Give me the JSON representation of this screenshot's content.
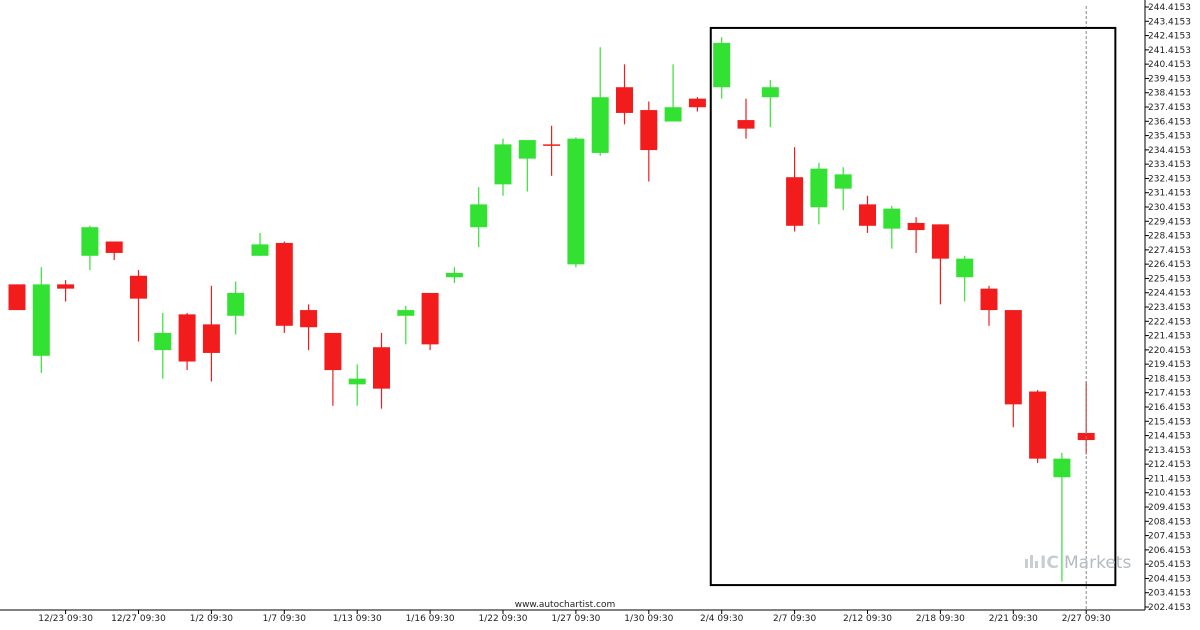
{
  "chart_data": {
    "type": "candlestick",
    "ylim": [
      202.4153,
      244.4153
    ],
    "y_ticks": [
      "244.4153",
      "243.4153",
      "242.4153",
      "241.4153",
      "240.4153",
      "239.4153",
      "238.4153",
      "237.4153",
      "236.4153",
      "235.4153",
      "234.4153",
      "233.4153",
      "232.4153",
      "231.4153",
      "230.4153",
      "229.4153",
      "228.4153",
      "227.4153",
      "226.4153",
      "225.4153",
      "224.4153",
      "223.4153",
      "222.4153",
      "221.4153",
      "220.4153",
      "219.4153",
      "218.4153",
      "217.4153",
      "216.4153",
      "215.4153",
      "214.4153",
      "213.4153",
      "212.4153",
      "211.4153",
      "210.4153",
      "209.4153",
      "208.4153",
      "207.4153",
      "206.4153",
      "205.4153",
      "204.4153",
      "203.4153",
      "202.4153"
    ],
    "x_ticks": [
      {
        "index": 2,
        "label": "12/23 09:30"
      },
      {
        "index": 5,
        "label": "12/27 09:30"
      },
      {
        "index": 8,
        "label": "1/2 09:30"
      },
      {
        "index": 11,
        "label": "1/7 09:30"
      },
      {
        "index": 14,
        "label": "1/13 09:30"
      },
      {
        "index": 17,
        "label": "1/16 09:30"
      },
      {
        "index": 20,
        "label": "1/22 09:30"
      },
      {
        "index": 23,
        "label": "1/27 09:30"
      },
      {
        "index": 26,
        "label": "1/30 09:30"
      },
      {
        "index": 29,
        "label": "2/4 09:30"
      },
      {
        "index": 32,
        "label": "2/7 09:30"
      },
      {
        "index": 35,
        "label": "2/12 09:30"
      },
      {
        "index": 38,
        "label": "2/18 09:30"
      },
      {
        "index": 41,
        "label": "2/21 09:30"
      },
      {
        "index": 44,
        "label": "2/27 09:30"
      }
    ],
    "candles": [
      {
        "o": 225.0,
        "h": 225.0,
        "l": 223.2,
        "c": 223.2
      },
      {
        "o": 220.0,
        "h": 226.2,
        "l": 218.8,
        "c": 225.0
      },
      {
        "o": 225.0,
        "h": 225.3,
        "l": 223.8,
        "c": 224.7
      },
      {
        "o": 227.0,
        "h": 229.1,
        "l": 226.0,
        "c": 229.0
      },
      {
        "o": 228.0,
        "h": 228.0,
        "l": 226.7,
        "c": 227.2
      },
      {
        "o": 225.6,
        "h": 226.0,
        "l": 221.0,
        "c": 224.0
      },
      {
        "o": 220.4,
        "h": 223.0,
        "l": 218.4,
        "c": 221.6
      },
      {
        "o": 222.9,
        "h": 223.0,
        "l": 219.0,
        "c": 219.6
      },
      {
        "o": 222.2,
        "h": 224.9,
        "l": 218.2,
        "c": 220.2
      },
      {
        "o": 222.8,
        "h": 225.2,
        "l": 221.5,
        "c": 224.4
      },
      {
        "o": 227.0,
        "h": 228.6,
        "l": 227.0,
        "c": 227.8
      },
      {
        "o": 227.9,
        "h": 228.0,
        "l": 221.6,
        "c": 222.1
      },
      {
        "o": 223.2,
        "h": 223.6,
        "l": 220.4,
        "c": 222.0
      },
      {
        "o": 221.6,
        "h": 221.6,
        "l": 216.5,
        "c": 219.0
      },
      {
        "o": 218.0,
        "h": 219.4,
        "l": 216.5,
        "c": 218.4
      },
      {
        "o": 220.6,
        "h": 221.6,
        "l": 216.3,
        "c": 217.7
      },
      {
        "o": 222.8,
        "h": 223.5,
        "l": 220.8,
        "c": 223.2
      },
      {
        "o": 224.4,
        "h": 224.4,
        "l": 220.4,
        "c": 220.8
      },
      {
        "o": 225.5,
        "h": 226.2,
        "l": 225.1,
        "c": 225.8
      },
      {
        "o": 229.0,
        "h": 231.8,
        "l": 227.6,
        "c": 230.6
      },
      {
        "o": 232.0,
        "h": 235.2,
        "l": 231.2,
        "c": 234.8
      },
      {
        "o": 233.8,
        "h": 235.1,
        "l": 231.5,
        "c": 235.1
      },
      {
        "o": 234.8,
        "h": 236.1,
        "l": 232.6,
        "c": 234.7
      },
      {
        "o": 226.4,
        "h": 235.3,
        "l": 226.2,
        "c": 235.2
      },
      {
        "o": 234.2,
        "h": 241.6,
        "l": 234.0,
        "c": 238.1
      },
      {
        "o": 238.8,
        "h": 240.4,
        "l": 236.2,
        "c": 237.0
      },
      {
        "o": 237.2,
        "h": 237.8,
        "l": 232.2,
        "c": 234.4
      },
      {
        "o": 236.4,
        "h": 240.4,
        "l": 236.4,
        "c": 237.4
      },
      {
        "o": 238.0,
        "h": 238.1,
        "l": 237.1,
        "c": 237.4
      },
      {
        "o": 238.8,
        "h": 242.3,
        "l": 238.0,
        "c": 241.9
      },
      {
        "o": 236.5,
        "h": 238.0,
        "l": 235.2,
        "c": 235.9
      },
      {
        "o": 238.1,
        "h": 239.3,
        "l": 236.0,
        "c": 238.8
      },
      {
        "o": 232.5,
        "h": 234.6,
        "l": 228.7,
        "c": 229.1
      },
      {
        "o": 230.4,
        "h": 233.5,
        "l": 229.2,
        "c": 233.1
      },
      {
        "o": 231.7,
        "h": 233.2,
        "l": 230.2,
        "c": 232.7
      },
      {
        "o": 230.6,
        "h": 231.2,
        "l": 228.6,
        "c": 229.1
      },
      {
        "o": 228.9,
        "h": 230.5,
        "l": 227.5,
        "c": 230.3
      },
      {
        "o": 229.3,
        "h": 229.7,
        "l": 227.2,
        "c": 228.8
      },
      {
        "o": 229.2,
        "h": 229.2,
        "l": 223.6,
        "c": 226.8
      },
      {
        "o": 225.5,
        "h": 227.0,
        "l": 223.8,
        "c": 226.8
      },
      {
        "o": 224.7,
        "h": 224.9,
        "l": 222.1,
        "c": 223.2
      },
      {
        "o": 223.2,
        "h": 223.2,
        "l": 215.0,
        "c": 216.6
      },
      {
        "o": 217.5,
        "h": 217.6,
        "l": 212.5,
        "c": 212.8
      },
      {
        "o": 211.5,
        "h": 213.2,
        "l": 204.2,
        "c": 212.8
      },
      {
        "o": 214.6,
        "h": 218.2,
        "l": 213.1,
        "c": 214.1
      }
    ],
    "highlight_box": {
      "x_start_index": 28.55,
      "x_end_index": 45.2,
      "y_top": 242.95,
      "y_bottom": 203.95
    },
    "vertical_marker_index": 44.0,
    "source_label": "www.autochartist.com",
    "watermark": {
      "part_a": "IC",
      "part_b": "Markets"
    },
    "up_color": "#33e133",
    "down_color": "#f21c1c",
    "box_color": "#000000",
    "grid": false
  }
}
